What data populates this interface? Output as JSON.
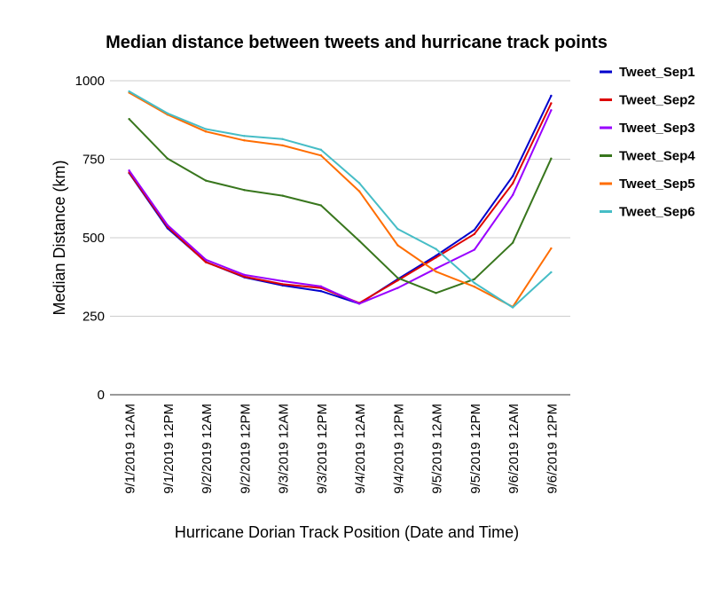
{
  "chart_data": {
    "type": "line",
    "title": "Median distance between tweets and hurricane track points",
    "xlabel": "Hurricane Dorian Track Position (Date and Time)",
    "ylabel": "Median Distance (km)",
    "ylim": [
      0,
      1000
    ],
    "yticks": [
      0,
      250,
      500,
      750,
      1000
    ],
    "grid": true,
    "legend_position": "right",
    "categories": [
      "9/1/2019 12AM",
      "9/1/2019 12PM",
      "9/2/2019 12AM",
      "9/2/2019 12PM",
      "9/3/2019 12AM",
      "9/3/2019 12PM",
      "9/4/2019 12AM",
      "9/4/2019 12PM",
      "9/5/2019 12AM",
      "9/5/2019 12PM",
      "9/6/2019 12AM",
      "9/6/2019 12PM"
    ],
    "series": [
      {
        "name": "Tweet_Sep1",
        "color": "#0000cc",
        "values": [
          706,
          530,
          423,
          374,
          348,
          330,
          290,
          368,
          443,
          525,
          696,
          952
        ]
      },
      {
        "name": "Tweet_Sep2",
        "color": "#dd0000",
        "values": [
          708,
          535,
          422,
          376,
          352,
          340,
          292,
          364,
          437,
          512,
          673,
          928
        ]
      },
      {
        "name": "Tweet_Sep3",
        "color": "#9900ff",
        "values": [
          714,
          540,
          430,
          382,
          362,
          345,
          290,
          340,
          402,
          462,
          636,
          906
        ]
      },
      {
        "name": "Tweet_Sep4",
        "color": "#38761d",
        "values": [
          878,
          752,
          682,
          652,
          634,
          603,
          490,
          372,
          324,
          368,
          484,
          752
        ]
      },
      {
        "name": "Tweet_Sep5",
        "color": "#ff6d01",
        "values": [
          962,
          892,
          838,
          810,
          794,
          762,
          648,
          476,
          392,
          344,
          280,
          466
        ]
      },
      {
        "name": "Tweet_Sep6",
        "color": "#46bdc6",
        "values": [
          966,
          896,
          846,
          824,
          814,
          780,
          674,
          528,
          464,
          356,
          278,
          390
        ]
      }
    ]
  }
}
